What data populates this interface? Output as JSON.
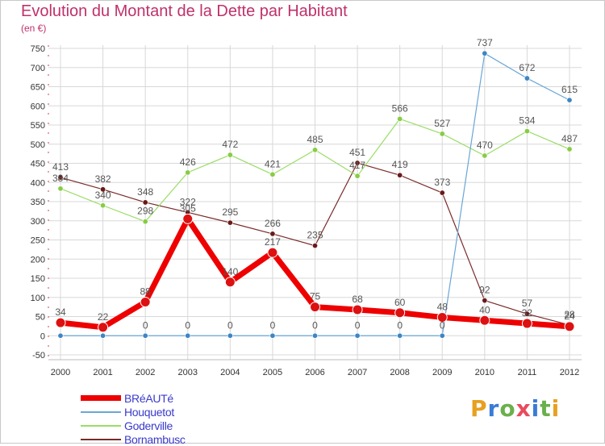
{
  "title": "Evolution du Montant de la Dette par Habitant",
  "subtitle": "(en €)",
  "logo": {
    "text": "Proxiti",
    "letters": [
      {
        "ch": "P",
        "color": "#e8a020"
      },
      {
        "ch": "r",
        "color": "#3a7bd5"
      },
      {
        "ch": "o",
        "color": "#6ab04c"
      },
      {
        "ch": "x",
        "color": "#e84a5f"
      },
      {
        "ch": "i",
        "color": "#3a7bd5"
      },
      {
        "ch": "t",
        "color": "#6ab04c"
      },
      {
        "ch": "i",
        "color": "#e8a020"
      }
    ]
  },
  "chart_data": {
    "type": "line",
    "x": [
      "2000",
      "2001",
      "2002",
      "2003",
      "2004",
      "2005",
      "2006",
      "2007",
      "2008",
      "2009",
      "2010",
      "2011",
      "2012"
    ],
    "ylim": [
      -50,
      750
    ],
    "yticks": [
      -50,
      0,
      50,
      100,
      150,
      200,
      250,
      300,
      350,
      400,
      450,
      500,
      550,
      600,
      650,
      700,
      750
    ],
    "grid": true,
    "legend_position": "bottom-left",
    "series": [
      {
        "name": "BRéAUTé",
        "color": "#ee0000",
        "marker_fill": "#dd1111",
        "width": 7,
        "marker": 6,
        "values": [
          34,
          22,
          88,
          305,
          140,
          217,
          75,
          68,
          60,
          48,
          40,
          32,
          24
        ],
        "labels": [
          "34",
          "22",
          "88",
          "305",
          "140",
          "217",
          "75",
          "68",
          "60",
          "48",
          "40",
          "32",
          "24"
        ]
      },
      {
        "name": "Houquetot",
        "color": "#6aa6d6",
        "marker_fill": "#3d86c6",
        "width": 1.2,
        "marker": 3.2,
        "values": [
          0,
          0,
          0,
          0,
          0,
          0,
          0,
          0,
          0,
          0,
          737,
          672,
          615
        ],
        "labels": [
          "",
          "",
          "0",
          "0",
          "0",
          "0",
          "0",
          "0",
          "0",
          "0",
          "737",
          "672",
          "615"
        ]
      },
      {
        "name": "Goderville",
        "color": "#99dd66",
        "marker_fill": "#88cc44",
        "width": 1.2,
        "marker": 3.2,
        "values": [
          384,
          340,
          298,
          426,
          472,
          421,
          485,
          417,
          566,
          527,
          470,
          534,
          487
        ],
        "labels": [
          "384",
          "340",
          "298",
          "426",
          "472",
          "421",
          "485",
          "417",
          "566",
          "527",
          "470",
          "534",
          "487"
        ]
      },
      {
        "name": "Bornambusc",
        "color": "#7a2a2a",
        "marker_fill": "#6a1a1a",
        "width": 1.2,
        "marker": 3.2,
        "values": [
          413,
          382,
          348,
          322,
          295,
          266,
          235,
          451,
          419,
          373,
          92,
          57,
          28
        ],
        "labels": [
          "413",
          "382",
          "348",
          "322",
          "295",
          "266",
          "235",
          "451",
          "419",
          "373",
          "92",
          "57",
          "28"
        ]
      }
    ]
  }
}
